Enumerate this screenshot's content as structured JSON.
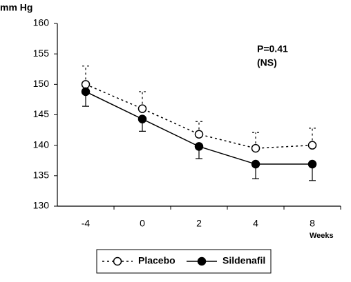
{
  "chart_data": {
    "type": "line",
    "y_label": "mm Hg",
    "x_label": "Weeks",
    "annotations": [
      "P=0.41",
      "(NS)"
    ],
    "categories": [
      "-4",
      "0",
      "2",
      "4",
      "8"
    ],
    "series": [
      {
        "name": "Placebo",
        "color": "#000000",
        "dashed": true,
        "marker": "open",
        "error_direction": "up",
        "values": [
          150,
          146,
          141.8,
          139.5,
          140
        ],
        "errors": [
          3,
          2.8,
          2.1,
          2.6,
          2.8
        ]
      },
      {
        "name": "Sildenafil",
        "color": "#000000",
        "dashed": false,
        "marker": "filled",
        "error_direction": "down",
        "values": [
          148.8,
          144.3,
          139.8,
          136.9,
          136.9
        ],
        "errors": [
          2.4,
          2,
          2,
          2.4,
          2.7
        ]
      }
    ],
    "ylim": [
      130,
      160
    ],
    "yticks": [
      130,
      135,
      140,
      145,
      150,
      155,
      160
    ],
    "grid": false
  }
}
